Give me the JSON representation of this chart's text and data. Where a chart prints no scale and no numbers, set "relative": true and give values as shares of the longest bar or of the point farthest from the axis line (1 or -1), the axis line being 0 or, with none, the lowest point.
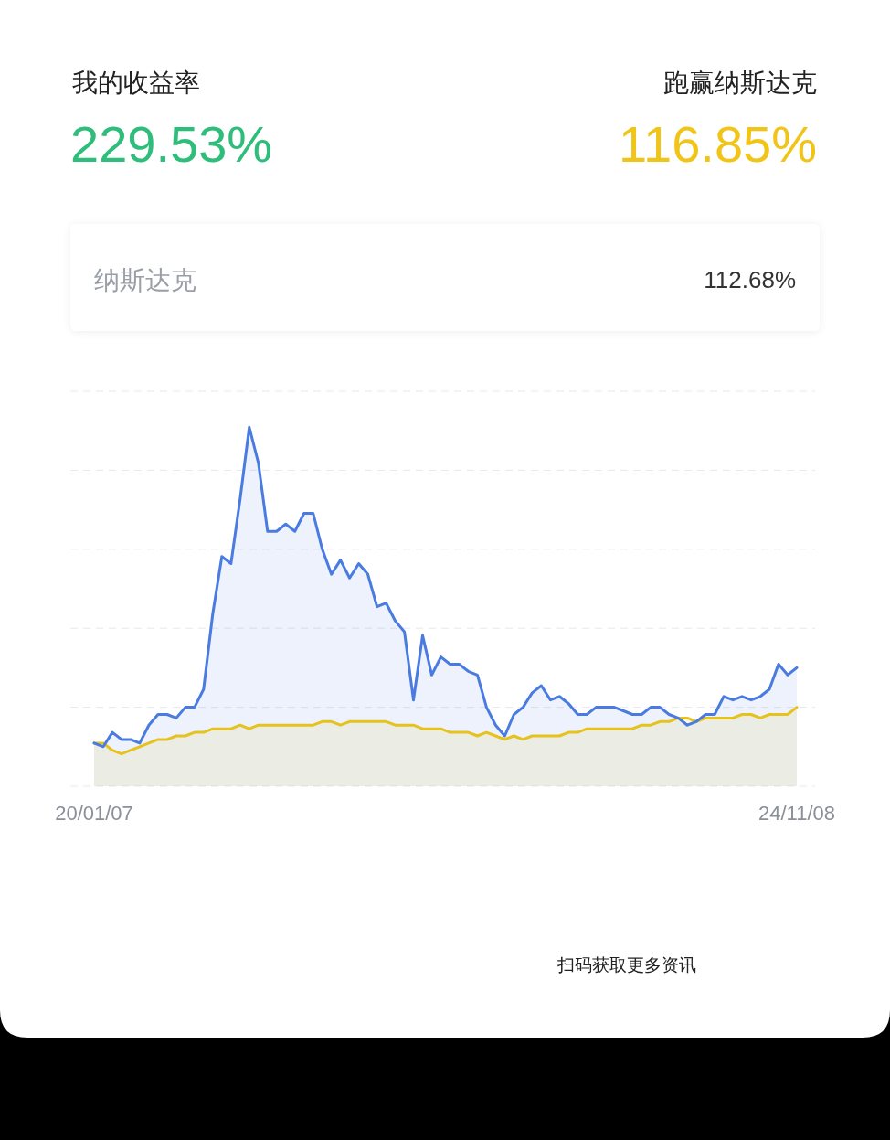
{
  "chart_data": {
    "type": "area",
    "title": "我的收益率",
    "annotations": [
      "229.53%",
      "跑赢纳斯达克",
      "116.85%",
      "纳斯达克",
      "112.68%",
      "扫码获取更多资讯"
    ],
    "categories": [
      "20/01/07",
      null,
      null,
      null,
      null,
      null,
      null,
      null,
      null,
      null,
      null,
      null,
      null,
      null,
      null,
      null,
      null,
      null,
      null,
      null,
      null,
      null,
      null,
      null,
      null,
      null,
      null,
      null,
      null,
      null,
      null,
      null,
      null,
      null,
      null,
      null,
      null,
      null,
      null,
      null,
      null,
      null,
      null,
      null,
      null,
      null,
      null,
      null,
      null,
      null,
      null,
      null,
      null,
      null,
      null,
      null,
      null,
      null,
      null,
      null,
      null,
      null,
      null,
      null,
      null,
      null,
      null,
      null,
      null,
      null,
      null,
      null,
      null,
      null,
      null,
      null,
      null,
      "24/11/08"
    ],
    "relative": true,
    "grid": true,
    "series": [
      {
        "color": "#4a7be0",
        "values": [
          0.12,
          0.11,
          0.15,
          0.13,
          0.13,
          0.12,
          0.17,
          0.2,
          0.2,
          0.19,
          0.22,
          0.22,
          0.27,
          0.48,
          0.64,
          0.62,
          0.8,
          1.0,
          0.9,
          0.71,
          0.71,
          0.73,
          0.71,
          0.76,
          0.76,
          0.66,
          0.59,
          0.63,
          0.58,
          0.62,
          0.59,
          0.5,
          0.51,
          0.46,
          0.43,
          0.24,
          0.42,
          0.31,
          0.36,
          0.34,
          0.34,
          0.32,
          0.31,
          0.22,
          0.17,
          0.14,
          0.2,
          0.22,
          0.26,
          0.28,
          0.24,
          0.25,
          0.23,
          0.2,
          0.2,
          0.22,
          0.22,
          0.22,
          0.21,
          0.2,
          0.2,
          0.22,
          0.22,
          0.2,
          0.19,
          0.17,
          0.18,
          0.2,
          0.2,
          0.25,
          0.24,
          0.25,
          0.24,
          0.25,
          0.27,
          0.34,
          0.31,
          0.33
        ]
      },
      {
        "color": "#e6c21c",
        "values": [
          0.12,
          0.12,
          0.1,
          0.09,
          0.1,
          0.11,
          0.12,
          0.13,
          0.13,
          0.14,
          0.14,
          0.15,
          0.15,
          0.16,
          0.16,
          0.16,
          0.17,
          0.16,
          0.17,
          0.17,
          0.17,
          0.17,
          0.17,
          0.17,
          0.17,
          0.18,
          0.18,
          0.17,
          0.18,
          0.18,
          0.18,
          0.18,
          0.18,
          0.17,
          0.17,
          0.17,
          0.16,
          0.16,
          0.16,
          0.15,
          0.15,
          0.15,
          0.14,
          0.15,
          0.14,
          0.13,
          0.14,
          0.13,
          0.14,
          0.14,
          0.14,
          0.14,
          0.15,
          0.15,
          0.16,
          0.16,
          0.16,
          0.16,
          0.16,
          0.16,
          0.17,
          0.17,
          0.18,
          0.18,
          0.19,
          0.19,
          0.18,
          0.19,
          0.19,
          0.19,
          0.19,
          0.2,
          0.2,
          0.19,
          0.2,
          0.2,
          0.2,
          0.22
        ]
      }
    ]
  }
}
